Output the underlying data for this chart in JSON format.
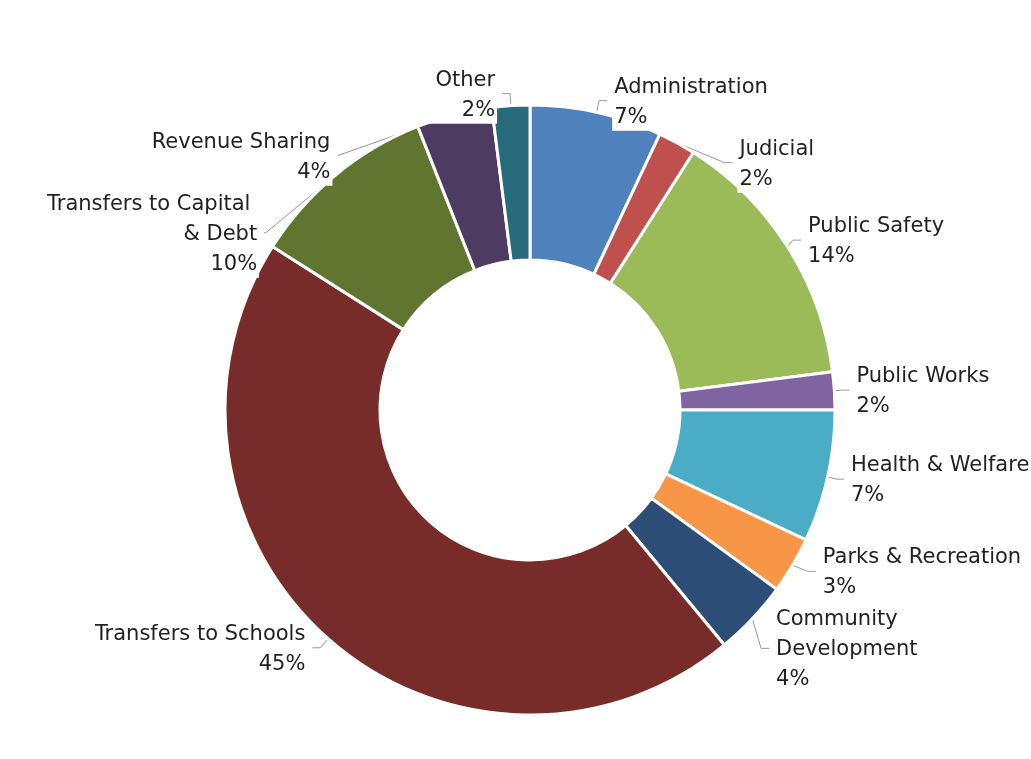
{
  "chart_data": {
    "type": "donut",
    "categories": [
      "Administration",
      "Judicial",
      "Public Safety",
      "Public Works",
      "Health & Welfare",
      "Parks & Recreation",
      "Community Development",
      "Transfers to Schools",
      "Transfers to Capital & Debt",
      "Revenue Sharing",
      "Other"
    ],
    "values": [
      7,
      2,
      14,
      2,
      7,
      3,
      4,
      45,
      10,
      4,
      2
    ],
    "value_labels": [
      "7%",
      "2%",
      "14%",
      "2%",
      "7%",
      "3%",
      "4%",
      "45%",
      "10%",
      "4%",
      "2%"
    ],
    "colors": [
      "#4f81bd",
      "#c0504d",
      "#9bbb59",
      "#8064a2",
      "#4bacc6",
      "#f79646",
      "#2c4d75",
      "#772c2a",
      "#5f7530",
      "#4d3b62",
      "#276a7c"
    ],
    "legend": false
  }
}
